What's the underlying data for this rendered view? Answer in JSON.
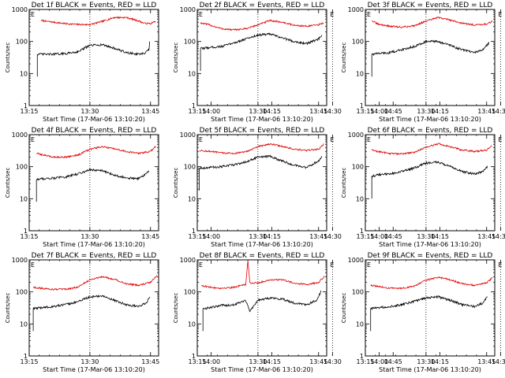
{
  "chart_data": {
    "type": "line",
    "layout": "3x3 grid",
    "shared": {
      "xlabel": "Start Time (17-Mar-06 13:10:20)",
      "ylabel": "Counts/sec",
      "x_tick_labels": [
        "13:15",
        "13:30",
        "13:45",
        "14:00",
        "14:15",
        "14:30",
        "14:45"
      ],
      "y_tick_labels": [
        "1",
        "10",
        "100",
        "1000"
      ],
      "yscale": "log",
      "ylim": [
        1,
        1000
      ],
      "xlim_minutes_after_13_00": [
        15,
        47
      ],
      "grid": false,
      "legend": "none",
      "markers": [
        "13:30",
        "14:30"
      ],
      "marker_label": "E",
      "series_colors": {
        "events": "#000000",
        "lld": "#e00000"
      }
    },
    "panels": [
      {
        "title": "Det 1f BLACK = Events, RED = LLD",
        "series": [
          {
            "name": "LLD",
            "x": [
              18,
              21,
              24,
              27,
              30,
              33,
              36,
              39,
              42,
              43.5,
              45,
              46.2
            ],
            "y": [
              450,
              400,
              360,
              340,
              335,
              420,
              560,
              560,
              440,
              370,
              360,
              430
            ]
          },
          {
            "name": "Events",
            "x": [
              17,
              18,
              21,
              24,
              27,
              30,
              33,
              36,
              39,
              42,
              43.5,
              44.6,
              44.8
            ],
            "y": [
              40,
              40,
              40,
              42,
              48,
              75,
              80,
              62,
              45,
              40,
              42,
              55,
              100
            ]
          }
        ]
      },
      {
        "title": "Det 2f BLACK = Events, RED = LLD",
        "series": [
          {
            "name": "LLD",
            "x": [
              15.8,
              18,
              21,
              24,
              27,
              30,
              33,
              36,
              39,
              42,
              45,
              46.2
            ],
            "y": [
              380,
              330,
              250,
              230,
              250,
              330,
              450,
              400,
              320,
              300,
              330,
              380
            ]
          },
          {
            "name": "Events",
            "x": [
              15.8,
              18,
              21,
              24,
              27,
              30,
              33,
              36,
              39,
              42,
              45,
              45.8
            ],
            "y": [
              60,
              65,
              70,
              90,
              120,
              160,
              170,
              130,
              100,
              85,
              120,
              150
            ]
          }
        ]
      },
      {
        "title": "Det 3f BLACK = Events, RED = LLD",
        "series": [
          {
            "name": "LLD",
            "x": [
              16.6,
              18,
              21,
              24,
              27,
              30,
              33,
              36,
              39,
              42,
              45,
              46.4
            ],
            "y": [
              450,
              350,
              300,
              280,
              310,
              430,
              560,
              470,
              370,
              330,
              350,
              420
            ]
          },
          {
            "name": "Events",
            "x": [
              16.6,
              18,
              21,
              24,
              27,
              30,
              33,
              36,
              39,
              42,
              44,
              45.6
            ],
            "y": [
              40,
              42,
              45,
              55,
              70,
              100,
              100,
              75,
              55,
              45,
              55,
              90
            ]
          }
        ]
      },
      {
        "title": "Det 4f BLACK = Events, RED = LLD",
        "series": [
          {
            "name": "LLD",
            "x": [
              16.8,
              18,
              21,
              24,
              27,
              30,
              33,
              36,
              39,
              42,
              45,
              46.3
            ],
            "y": [
              260,
              240,
              200,
              200,
              230,
              350,
              420,
              360,
              300,
              260,
              300,
              430
            ]
          },
          {
            "name": "Events",
            "x": [
              16.8,
              18,
              21,
              24,
              27,
              30,
              33,
              36,
              39,
              42,
              43.5,
              44.6
            ],
            "y": [
              40,
              42,
              44,
              48,
              60,
              80,
              75,
              55,
              45,
              42,
              55,
              75
            ]
          }
        ]
      },
      {
        "title": "Det 5f BLACK = Events, RED = LLD",
        "series": [
          {
            "name": "LLD",
            "x": [
              15.5,
              18,
              21,
              24,
              27,
              30,
              33,
              36,
              39,
              42,
              45,
              46.3
            ],
            "y": [
              320,
              300,
              270,
              260,
              290,
              420,
              520,
              430,
              350,
              320,
              350,
              500
            ]
          },
          {
            "name": "Events",
            "x": [
              15.5,
              18,
              21,
              24,
              27,
              30,
              33,
              36,
              39,
              42,
              45,
              45.8
            ],
            "y": [
              90,
              95,
              100,
              115,
              140,
              200,
              210,
              150,
              110,
              95,
              150,
              200
            ]
          }
        ]
      },
      {
        "title": "Det 6f BLACK = Events, RED = LLD",
        "series": [
          {
            "name": "LLD",
            "x": [
              16.6,
              18,
              21,
              24,
              27,
              30,
              33,
              36,
              39,
              42,
              45,
              46.3
            ],
            "y": [
              330,
              300,
              260,
              250,
              280,
              400,
              520,
              420,
              330,
              300,
              330,
              450
            ]
          },
          {
            "name": "Events",
            "x": [
              16.6,
              18,
              21,
              24,
              27,
              30,
              33,
              36,
              39,
              42,
              44,
              45.2
            ],
            "y": [
              50,
              55,
              60,
              70,
              90,
              130,
              140,
              100,
              70,
              60,
              70,
              100
            ]
          }
        ]
      },
      {
        "title": "Det 7f BLACK = Events, RED = LLD",
        "series": [
          {
            "name": "LLD",
            "x": [
              16,
              18,
              21,
              24,
              27,
              30,
              33,
              36,
              39,
              42,
              45,
              46.5
            ],
            "y": [
              140,
              130,
              120,
              120,
              140,
              240,
              300,
              250,
              180,
              160,
              200,
              310
            ]
          },
          {
            "name": "Events",
            "x": [
              16,
              18,
              21,
              24,
              27,
              30,
              33,
              36,
              39,
              42,
              44,
              44.8
            ],
            "y": [
              30,
              32,
              35,
              40,
              50,
              70,
              75,
              55,
              40,
              35,
              45,
              70
            ]
          }
        ]
      },
      {
        "title": "Det 8f BLACK = Events, RED = LLD",
        "series": [
          {
            "name": "LLD",
            "x": [
              16,
              18,
              21,
              24,
              27,
              27.5,
              28,
              30,
              33,
              36,
              39,
              42,
              45,
              46.4
            ],
            "y": [
              160,
              140,
              130,
              140,
              170,
              1000,
              190,
              190,
              240,
              240,
              190,
              170,
              200,
              300
            ]
          },
          {
            "name": "Events",
            "x": [
              16.4,
              18,
              21,
              24,
              27,
              28,
              30,
              33,
              36,
              39,
              42,
              44.5,
              45.6
            ],
            "y": [
              30,
              32,
              38,
              40,
              55,
              25,
              55,
              65,
              60,
              45,
              40,
              55,
              100
            ]
          }
        ]
      },
      {
        "title": "Det 9f BLACK = Events, RED = LLD",
        "series": [
          {
            "name": "LLD",
            "x": [
              16.3,
              18,
              21,
              24,
              27,
              30,
              33,
              36,
              39,
              42,
              45,
              46.5
            ],
            "y": [
              160,
              150,
              130,
              130,
              150,
              230,
              290,
              240,
              180,
              160,
              190,
              280
            ]
          },
          {
            "name": "Events",
            "x": [
              16.3,
              18,
              21,
              24,
              27,
              30,
              33,
              36,
              39,
              42,
              44,
              45.2
            ],
            "y": [
              30,
              32,
              35,
              40,
              50,
              65,
              70,
              55,
              40,
              35,
              45,
              70
            ]
          }
        ]
      }
    ]
  }
}
